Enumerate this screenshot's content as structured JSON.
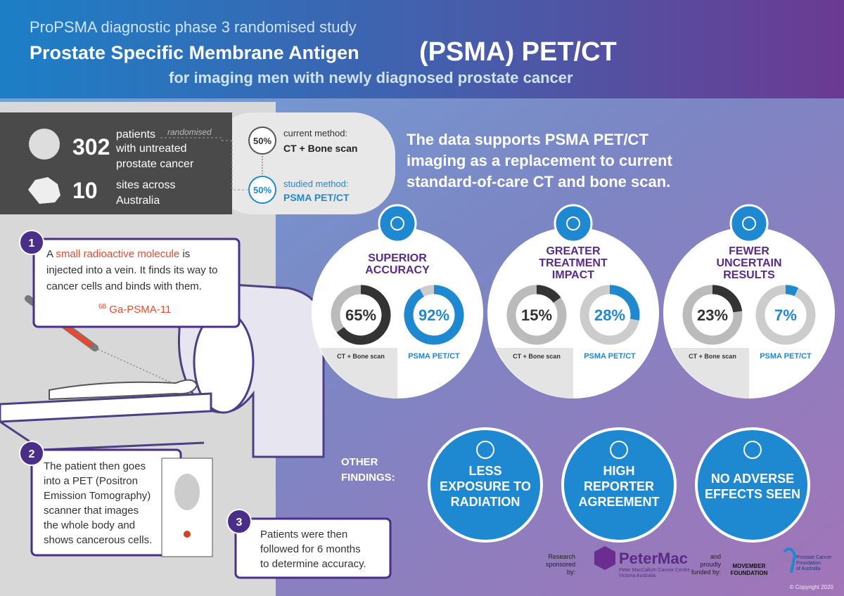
{
  "header": {
    "kicker": "ProPSMA diagnostic phase 3 randomised study",
    "title_main": "Prostate Specific Membrane Antigen",
    "title_big": "(PSMA) PET/CT",
    "subtitle": "for imaging men with newly diagnosed prostate cancer"
  },
  "study": {
    "patients": 302,
    "patients_lines": [
      "patients",
      "with untreated",
      "prostate cancer"
    ],
    "randomised": "randomised",
    "sites": 10,
    "sites_lines": [
      "sites across",
      "Australia"
    ],
    "arms": [
      {
        "share": "50%",
        "label": "current method:",
        "method": "CT + Bone scan"
      },
      {
        "share": "50%",
        "label": "studied method:",
        "method": "PSMA PET/CT"
      }
    ]
  },
  "conclusion": [
    "The data supports PSMA PET/CT",
    "imaging as a replacement to current",
    "standard-of-care CT and bone scan."
  ],
  "steps": [
    {
      "number": 1,
      "intro": "A",
      "highlight": "small radioactive molecule",
      "lines": [
        "is",
        "injected into a vein. It finds its way to",
        "cancer cells and binds with them."
      ]
    },
    {
      "number": 2,
      "lines": [
        "The patient then goes",
        "into a PET (Positron",
        "Emission Tomography)",
        "scanner that images",
        "the whole body and",
        "shows cancerous cells."
      ]
    },
    {
      "number": 3,
      "lines": [
        "Patients were then",
        "followed for 6 months",
        "to determine accuracy."
      ]
    }
  ],
  "tracer": {
    "isotope": "68",
    "name": "Ga-PSMA-11"
  },
  "results": [
    {
      "title": [
        "SUPERIOR",
        "ACCURACY"
      ],
      "current": {
        "value": 65,
        "label": "65%"
      },
      "studied": {
        "value": 92,
        "label": "92%"
      },
      "current_name": "CT + Bone scan",
      "studied_name": "PSMA PET/CT"
    },
    {
      "title": [
        "GREATER",
        "TREATMENT",
        "IMPACT"
      ],
      "current": {
        "value": 15,
        "label": "15%"
      },
      "studied": {
        "value": 28,
        "label": "28%"
      },
      "current_name": "CT + Bone scan",
      "studied_name": "PSMA PET/CT"
    },
    {
      "title": [
        "FEWER",
        "UNCERTAIN",
        "RESULTS"
      ],
      "current": {
        "value": 23,
        "label": "23%"
      },
      "studied": {
        "value": 7,
        "label": "7%"
      },
      "current_name": "CT + Bone scan",
      "studied_name": "PSMA PET/CT"
    }
  ],
  "other_findings": {
    "label": [
      "OTHER",
      "FINDINGS:"
    ],
    "items": [
      [
        "LESS",
        "EXPOSURE TO",
        "RADIATION"
      ],
      [
        "HIGH",
        "REPORTER",
        "AGREEMENT"
      ],
      [
        "NO ADVERSE",
        "EFFECTS SEEN"
      ]
    ]
  },
  "footer": {
    "research": [
      "Research",
      "sponsored",
      "by:"
    ],
    "peter_mac": "PeterMac",
    "peter_mac_sub": [
      "Peter MacCallum Cancer Centre",
      "Victoria Australia"
    ],
    "funded": [
      "and",
      "proudly",
      "funded by:"
    ],
    "movember": [
      "MOVEMBER",
      "FOUNDATION"
    ],
    "pcfa": [
      "Prostate Cancer",
      "Foundation",
      "of Australia"
    ],
    "copyright": "© Copyright 2020"
  }
}
